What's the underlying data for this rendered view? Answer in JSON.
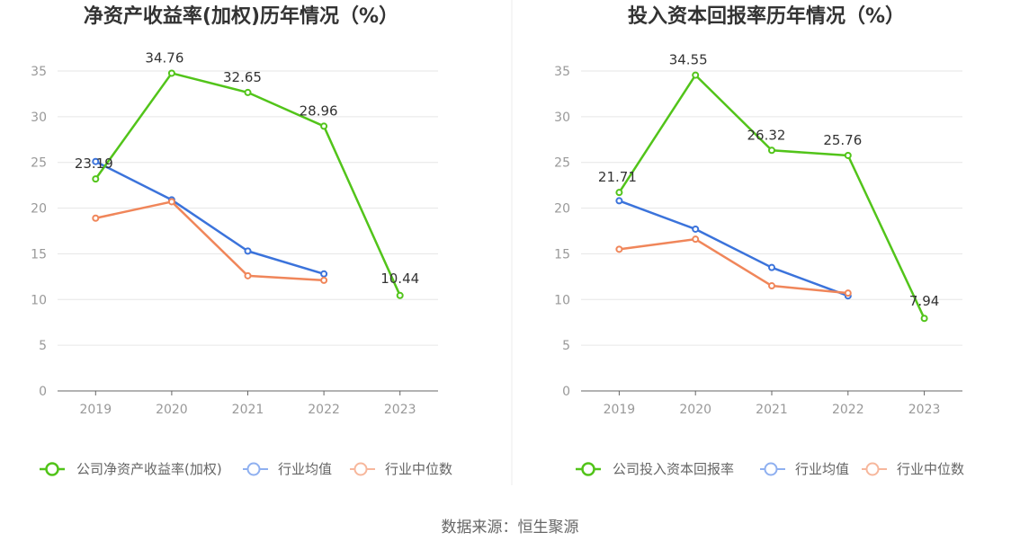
{
  "chart_data": [
    {
      "type": "line",
      "title": "净资产收益率(加权)历年情况（%）",
      "categories": [
        "2019",
        "2020",
        "2021",
        "2022",
        "2023"
      ],
      "ylim": [
        0,
        35
      ],
      "yticks": [
        0,
        5,
        10,
        15,
        20,
        25,
        30,
        35
      ],
      "grid": true,
      "legend_position": "bottom",
      "series": [
        {
          "name": "公司净资产收益率(加权)",
          "color": "#52c41a",
          "values": [
            23.19,
            34.76,
            32.65,
            28.96,
            10.44
          ],
          "labels": [
            "23.19",
            "34.76",
            "32.65",
            "28.96",
            "10.44"
          ]
        },
        {
          "name": "行业均值",
          "color": "#3b73db",
          "values": [
            25.1,
            20.9,
            15.3,
            12.8,
            null
          ]
        },
        {
          "name": "行业中位数",
          "color": "#f0865a",
          "values": [
            18.9,
            20.7,
            12.6,
            12.1,
            null
          ]
        }
      ]
    },
    {
      "type": "line",
      "title": "投入资本回报率历年情况（%）",
      "categories": [
        "2019",
        "2020",
        "2021",
        "2022",
        "2023"
      ],
      "ylim": [
        0,
        35
      ],
      "yticks": [
        0,
        5,
        10,
        15,
        20,
        25,
        30,
        35
      ],
      "grid": true,
      "legend_position": "bottom",
      "series": [
        {
          "name": "公司投入资本回报率",
          "color": "#52c41a",
          "values": [
            21.71,
            34.55,
            26.32,
            25.76,
            7.94
          ],
          "labels": [
            "21.71",
            "34.55",
            "26.32",
            "25.76",
            "7.94"
          ]
        },
        {
          "name": "行业均值",
          "color": "#3b73db",
          "values": [
            20.8,
            17.7,
            13.5,
            10.4,
            null
          ]
        },
        {
          "name": "行业中位数",
          "color": "#f0865a",
          "values": [
            15.5,
            16.6,
            11.5,
            10.7,
            null
          ]
        }
      ]
    }
  ],
  "source": "数据来源：恒生聚源",
  "legend_light_colors": [
    "#52c41a",
    "#8fb0f0",
    "#f7b79c"
  ]
}
